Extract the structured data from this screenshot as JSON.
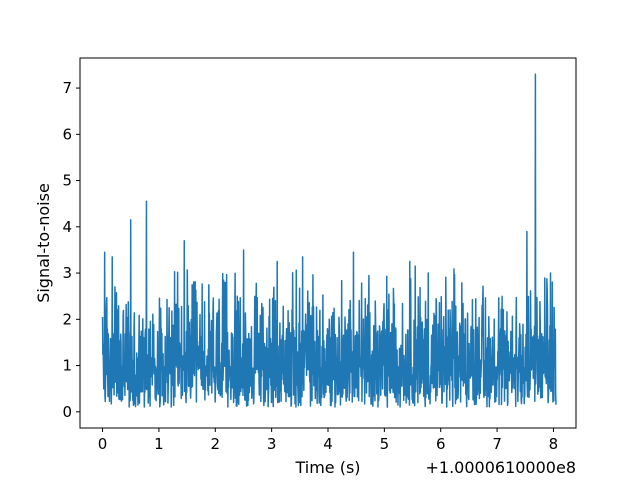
{
  "chart_data": {
    "type": "line",
    "title": "",
    "xlabel": "Time (s)",
    "ylabel": "Signal-to-noise",
    "x_offset_label": "+1.0000610000e8",
    "xlim": [
      -0.4,
      8.4
    ],
    "ylim": [
      -0.35,
      7.65
    ],
    "x_ticks": [
      0,
      1,
      2,
      3,
      4,
      5,
      6,
      7,
      8
    ],
    "y_ticks": [
      0,
      1,
      2,
      3,
      4,
      5,
      6,
      7
    ],
    "x_tick_labels": [
      "0",
      "1",
      "2",
      "3",
      "4",
      "5",
      "6",
      "7",
      "8"
    ],
    "y_tick_labels": [
      "0",
      "1",
      "2",
      "3",
      "4",
      "5",
      "6",
      "7"
    ],
    "grid": false,
    "colors": {
      "line": "#1f77b4",
      "axes": "#000000",
      "background": "#ffffff"
    },
    "series": [
      {
        "x_range": [
          0,
          8.05
        ],
        "peaks": [
          {
            "x": 0.04,
            "y": 3.45
          },
          {
            "x": 0.17,
            "y": 3.35
          },
          {
            "x": 0.5,
            "y": 4.15
          },
          {
            "x": 0.78,
            "y": 4.55
          },
          {
            "x": 1.45,
            "y": 3.7
          },
          {
            "x": 2.5,
            "y": 3.5
          },
          {
            "x": 3.1,
            "y": 3.25
          },
          {
            "x": 3.55,
            "y": 3.35
          },
          {
            "x": 4.45,
            "y": 3.45
          },
          {
            "x": 5.45,
            "y": 3.25
          },
          {
            "x": 5.55,
            "y": 3.15
          },
          {
            "x": 5.78,
            "y": 3.0
          },
          {
            "x": 7.53,
            "y": 3.9
          },
          {
            "x": 7.68,
            "y": 7.3
          },
          {
            "x": 7.95,
            "y": 3.0
          }
        ]
      }
    ]
  }
}
